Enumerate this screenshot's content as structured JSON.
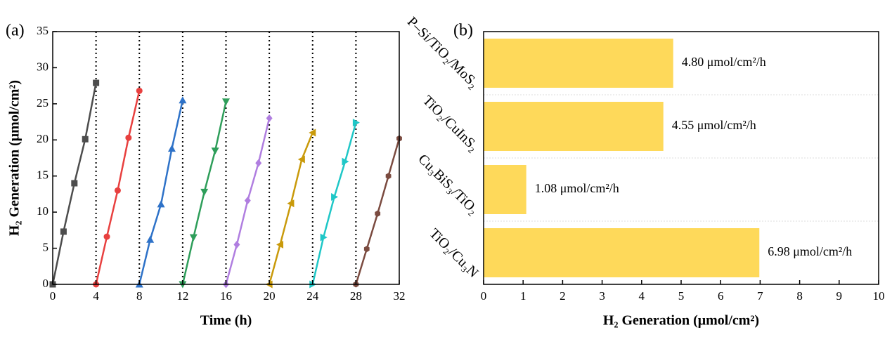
{
  "chart_data": [
    {
      "type": "line",
      "panel_label": "(a)",
      "x_label": "Time (h)",
      "y_label": "H₂ Generation (μmol/cm²)",
      "xlim": [
        0,
        32
      ],
      "ylim": [
        0,
        35
      ],
      "xticks": [
        0,
        4,
        8,
        12,
        16,
        20,
        24,
        28,
        32
      ],
      "yticks": [
        0,
        5,
        10,
        15,
        20,
        25,
        30,
        35
      ],
      "vlines": [
        4,
        8,
        12,
        16,
        20,
        24,
        28
      ],
      "series": [
        {
          "color": "#4d4d4d",
          "marker": "square",
          "x": [
            0,
            1,
            2,
            3,
            4
          ],
          "values": [
            0,
            7.3,
            14,
            20.1,
            27.9
          ]
        },
        {
          "color": "#e8403f",
          "marker": "circle",
          "x": [
            4,
            5,
            6,
            7,
            8
          ],
          "values": [
            0,
            6.6,
            13,
            20.3,
            26.8
          ]
        },
        {
          "color": "#2e72c8",
          "marker": "triangle-up",
          "x": [
            8,
            9,
            10,
            11,
            12
          ],
          "values": [
            0,
            6.2,
            11.1,
            18.8,
            25.5
          ]
        },
        {
          "color": "#2e9e5a",
          "marker": "triangle-down",
          "x": [
            12,
            13,
            14,
            15,
            16
          ],
          "values": [
            0,
            6.5,
            12.8,
            18.5,
            25.3
          ]
        },
        {
          "color": "#b07ee0",
          "marker": "diamond",
          "x": [
            16,
            17,
            18,
            19,
            20
          ],
          "values": [
            0,
            5.5,
            11.6,
            16.8,
            23
          ]
        },
        {
          "color": "#c99a0b",
          "marker": "triangle-left",
          "x": [
            20,
            21,
            22,
            23,
            24
          ],
          "values": [
            0,
            5.5,
            11.2,
            17.3,
            21
          ]
        },
        {
          "color": "#1fc7c7",
          "marker": "triangle-right",
          "x": [
            24,
            25,
            26,
            27,
            28
          ],
          "values": [
            0,
            6.5,
            12.1,
            17,
            22.4
          ]
        },
        {
          "color": "#7b4b40",
          "marker": "hexagon",
          "x": [
            28,
            29,
            30,
            31,
            32
          ],
          "values": [
            0,
            4.9,
            9.8,
            15,
            20.2
          ]
        }
      ]
    },
    {
      "type": "hbar",
      "panel_label": "(b)",
      "x_label": "H₂ Generation (μmol/cm²)",
      "categories": [
        "P–Si/TiO₂/MoS₂",
        "TiO₂/CuInS₂",
        "Cu₃BiS₃/TiO₂",
        "TiO₂/Cu₃N"
      ],
      "values": [
        4.8,
        4.55,
        1.08,
        6.98
      ],
      "value_labels": [
        "4.80 μmol/cm²/h",
        "4.55 μmol/cm²/h",
        "1.08 μmol/cm²/h",
        "6.98 μmol/cm²/h"
      ],
      "color": "#fed95a",
      "xlim": [
        0,
        10
      ],
      "xticks": [
        0,
        1,
        2,
        3,
        4,
        5,
        6,
        7,
        8,
        9,
        10
      ]
    }
  ]
}
